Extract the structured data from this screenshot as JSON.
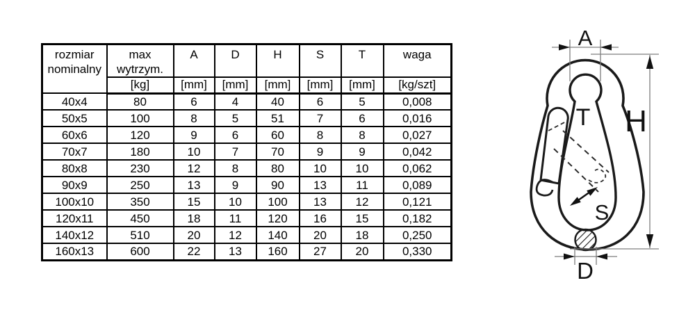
{
  "table": {
    "columns": [
      {
        "label": "rozmiar nominalny",
        "unit": ""
      },
      {
        "label": "max wytrzym.",
        "unit": "[kg]"
      },
      {
        "label": "A",
        "unit": "[mm]"
      },
      {
        "label": "D",
        "unit": "[mm]"
      },
      {
        "label": "H",
        "unit": "[mm]"
      },
      {
        "label": "S",
        "unit": "[mm]"
      },
      {
        "label": "T",
        "unit": "[mm]"
      },
      {
        "label": "waga",
        "unit": "[kg/szt]"
      }
    ],
    "rows": [
      [
        "40x4",
        "80",
        "6",
        "4",
        "40",
        "6",
        "5",
        "0,008"
      ],
      [
        "50x5",
        "100",
        "8",
        "5",
        "51",
        "7",
        "6",
        "0,016"
      ],
      [
        "60x6",
        "120",
        "9",
        "6",
        "60",
        "8",
        "8",
        "0,027"
      ],
      [
        "70x7",
        "180",
        "10",
        "7",
        "70",
        "9",
        "9",
        "0,042"
      ],
      [
        "80x8",
        "230",
        "12",
        "8",
        "80",
        "10",
        "10",
        "0,062"
      ],
      [
        "90x9",
        "250",
        "13",
        "9",
        "90",
        "13",
        "11",
        "0,089"
      ],
      [
        "100x10",
        "350",
        "15",
        "10",
        "100",
        "13",
        "12",
        "0,121"
      ],
      [
        "120x11",
        "450",
        "18",
        "11",
        "120",
        "16",
        "15",
        "0,182"
      ],
      [
        "140x12",
        "510",
        "20",
        "12",
        "140",
        "20",
        "18",
        "0,250"
      ],
      [
        "160x13",
        "600",
        "22",
        "13",
        "160",
        "27",
        "20",
        "0,330"
      ]
    ]
  },
  "diagram": {
    "labels": {
      "a": "A",
      "h": "H",
      "t": "T",
      "s": "S",
      "d": "D"
    }
  },
  "colors": {
    "table_border": "#000000",
    "drawing_line": "#1a1a1a",
    "dimension_line": "#7d7d7d",
    "background": "#ffffff"
  }
}
